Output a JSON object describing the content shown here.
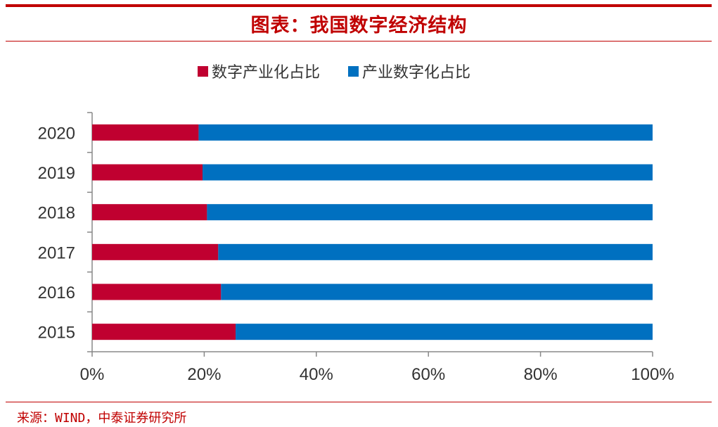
{
  "header": {
    "title": "图表：我国数字经济结构"
  },
  "footer": {
    "source": "来源：WIND，中泰证券研究所"
  },
  "chart_data": {
    "type": "bar",
    "orientation": "horizontal",
    "stacked": true,
    "categories": [
      "2020",
      "2019",
      "2018",
      "2017",
      "2016",
      "2015"
    ],
    "series": [
      {
        "name": "数字产业化占比",
        "color": "#c00030",
        "values": [
          19.0,
          19.7,
          20.5,
          22.5,
          23.0,
          25.6
        ]
      },
      {
        "name": "产业数字化占比",
        "color": "#0070c0",
        "values": [
          81.0,
          80.3,
          79.5,
          77.5,
          77.0,
          74.4
        ]
      }
    ],
    "xlim": [
      0,
      100
    ],
    "x_ticks": [
      "0%",
      "20%",
      "40%",
      "60%",
      "80%",
      "100%"
    ],
    "legend_position": "top",
    "grid": false
  }
}
